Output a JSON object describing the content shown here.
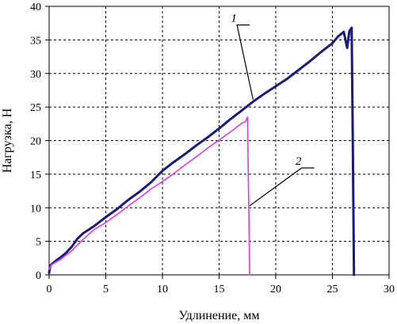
{
  "chart_data": {
    "type": "line",
    "xlabel": "Удлинение, мм",
    "ylabel": "Нагрузка, Н",
    "xlim": [
      0,
      30
    ],
    "ylim": [
      0,
      40
    ],
    "xticks": [
      0,
      5,
      10,
      15,
      20,
      25,
      30
    ],
    "yticks": [
      0,
      5,
      10,
      15,
      20,
      25,
      30,
      35,
      40
    ],
    "grid": true,
    "grid_style": "dotted",
    "legend": "none",
    "series": [
      {
        "name": "1",
        "color": "#1a1a78",
        "stroke": "thick",
        "points": [
          [
            0,
            0.3
          ],
          [
            0.1,
            1.4
          ],
          [
            0.5,
            2.0
          ],
          [
            1,
            2.6
          ],
          [
            1.5,
            3.3
          ],
          [
            2,
            4.2
          ],
          [
            2.5,
            5.4
          ],
          [
            3,
            6.2
          ],
          [
            4,
            7.3
          ],
          [
            5,
            8.6
          ],
          [
            6,
            9.8
          ],
          [
            7,
            11.2
          ],
          [
            8,
            12.4
          ],
          [
            9,
            13.8
          ],
          [
            10,
            15.5
          ],
          [
            11,
            16.8
          ],
          [
            12,
            18.0
          ],
          [
            13,
            19.3
          ],
          [
            14,
            20.5
          ],
          [
            15,
            21.8
          ],
          [
            16,
            23.2
          ],
          [
            17,
            24.5
          ],
          [
            18,
            25.8
          ],
          [
            19,
            27.0
          ],
          [
            20,
            28.1
          ],
          [
            21,
            29.2
          ],
          [
            22,
            30.5
          ],
          [
            23,
            31.8
          ],
          [
            24,
            33.2
          ],
          [
            25,
            34.5
          ],
          [
            25.5,
            35.5
          ],
          [
            26,
            36.2
          ],
          [
            26.3,
            33.8
          ],
          [
            26.5,
            36.3
          ],
          [
            26.7,
            36.8
          ],
          [
            26.8,
            20.0
          ],
          [
            26.9,
            0.0
          ]
        ]
      },
      {
        "name": "2",
        "color": "#e13ce1",
        "stroke": "thin",
        "points": [
          [
            0,
            0.8
          ],
          [
            0.2,
            1.5
          ],
          [
            0.5,
            1.8
          ],
          [
            1,
            2.3
          ],
          [
            2,
            3.6
          ],
          [
            3,
            5.3
          ],
          [
            4,
            6.8
          ],
          [
            5,
            7.8
          ],
          [
            6,
            9.0
          ],
          [
            7,
            10.3
          ],
          [
            8,
            11.5
          ],
          [
            9,
            12.8
          ],
          [
            10,
            13.9
          ],
          [
            11,
            15.1
          ],
          [
            12,
            16.4
          ],
          [
            13,
            17.6
          ],
          [
            14,
            18.9
          ],
          [
            15,
            20.1
          ],
          [
            16,
            21.3
          ],
          [
            17,
            22.6
          ],
          [
            17.3,
            22.8
          ],
          [
            17.5,
            23.5
          ],
          [
            17.6,
            12.0
          ],
          [
            17.7,
            0.0
          ]
        ]
      }
    ],
    "annotations": [
      {
        "text": "1",
        "target_series": "1",
        "anchor": [
          18.0,
          26.1
        ],
        "label_at": [
          16.3,
          37.7
        ]
      },
      {
        "text": "2",
        "target_series": "2",
        "anchor": [
          17.7,
          10.3
        ],
        "label_at": [
          22.0,
          16.4
        ]
      }
    ]
  }
}
